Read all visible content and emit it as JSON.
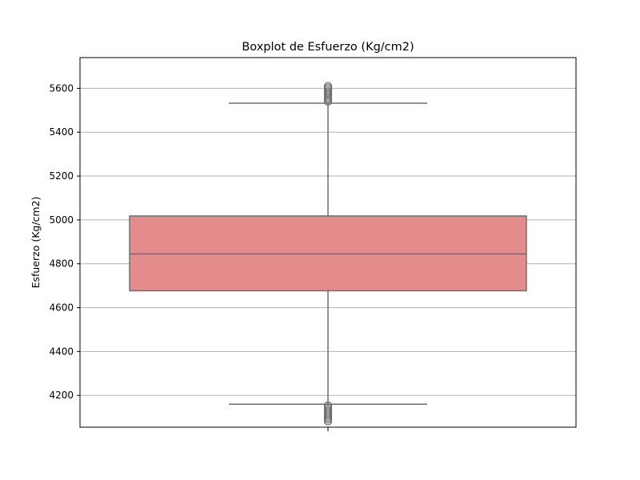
{
  "chart_data": {
    "type": "box",
    "title": "Boxplot de Esfuerzo (Kg/cm2)",
    "xlabel": "",
    "ylabel": "Esfuerzo (Kg/cm2)",
    "ylim": [
      4055,
      5740
    ],
    "yticks": [
      4200,
      4400,
      4600,
      4800,
      5000,
      5200,
      5400,
      5600
    ],
    "grid": "horizontal",
    "box": {
      "whisker_low": 4160,
      "q1": 4677,
      "median": 4845,
      "q3": 5018,
      "whisker_high": 5532
    },
    "outliers": [
      5540,
      5548,
      5555,
      5562,
      5570,
      5578,
      5586,
      5594,
      5602,
      5610,
      4082,
      4090,
      4098,
      4106,
      4114,
      4122,
      4130,
      4138,
      4146,
      4154
    ],
    "colors": {
      "box_fill": "#e48b8c",
      "lines": "#6e6e6e",
      "grid": "#b0b0b0"
    }
  }
}
